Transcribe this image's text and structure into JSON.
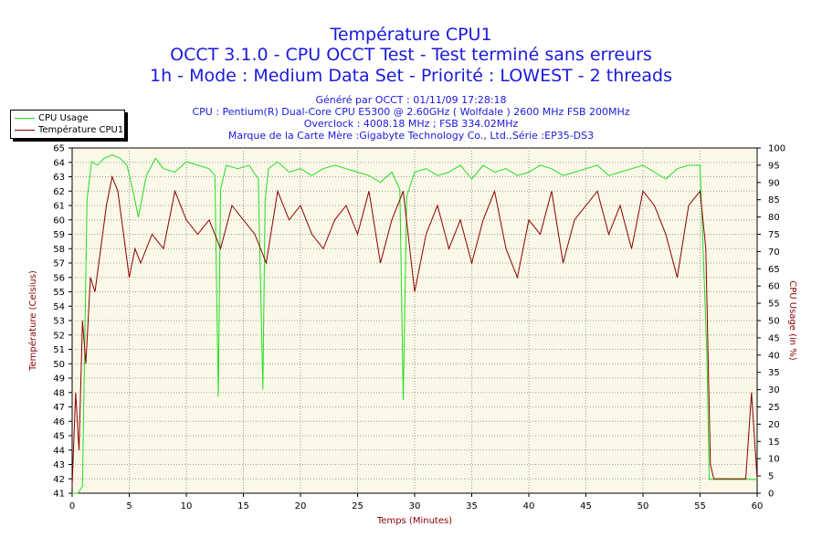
{
  "header": {
    "title": "Température CPU1",
    "subtitle1": "OCCT 3.1.0 - CPU OCCT Test - Test terminé sans erreurs",
    "subtitle2": "1h - Mode : Medium Data Set - Priorité : LOWEST - 2 threads",
    "info": [
      "Généré par OCCT : 01/11/09 17:28:18",
      "CPU : Pentium(R) Dual-Core CPU E5300 @ 2.60GHz ( Wolfdale ) 2600 MHz FSB 200MHz",
      "Overclock : 4008.18 MHz ; FSB 334.02MHz",
      "Marque de la Carte Mère :Gigabyte Technology Co., Ltd.,Série :EP35-DS3"
    ]
  },
  "legend": {
    "cpu_usage": "CPU Usage",
    "temperature": "Température CPU1"
  },
  "colors": {
    "cpu_usage": "#22dd22",
    "temperature": "#8b0000",
    "plot_bg": "#fbf8e8",
    "grid": "#9a9a9a",
    "title": "#1a1adb",
    "axis_label": "#8b0000"
  },
  "chart_data": {
    "type": "line",
    "xlabel": "Temps (Minutes)",
    "ylabel_left": "Température (Celsius)",
    "ylabel_right": "CPU Usage (in %)",
    "xlim": [
      0,
      60
    ],
    "ylim_left": [
      41,
      65
    ],
    "ylim_right": [
      0,
      100
    ],
    "x_ticks": [
      0,
      5,
      10,
      15,
      20,
      25,
      30,
      35,
      40,
      45,
      50,
      55,
      60
    ],
    "left_ticks": [
      41,
      42,
      43,
      44,
      45,
      46,
      47,
      48,
      49,
      50,
      51,
      52,
      53,
      54,
      55,
      56,
      57,
      58,
      59,
      60,
      61,
      62,
      63,
      64,
      65
    ],
    "right_ticks": [
      0,
      5,
      10,
      15,
      20,
      25,
      30,
      35,
      40,
      45,
      50,
      55,
      60,
      65,
      70,
      75,
      80,
      85,
      90,
      95,
      100
    ],
    "grid": true,
    "legend_position": "top-left",
    "series": [
      {
        "name": "CPU Usage",
        "axis": "right",
        "x": [
          0,
          0.5,
          0.9,
          1.3,
          1.7,
          2.2,
          2.8,
          3.5,
          4.2,
          4.8,
          5.3,
          5.8,
          6.5,
          7.3,
          8.0,
          9.0,
          10.0,
          11.0,
          12.0,
          12.5,
          12.8,
          13.0,
          13.5,
          14.5,
          15.5,
          16.3,
          16.7,
          16.9,
          17.2,
          18.0,
          19.0,
          20.0,
          21.0,
          22.0,
          23.0,
          24.0,
          25.0,
          26.0,
          27.0,
          28.0,
          28.7,
          29.0,
          29.3,
          30.0,
          31.0,
          32.0,
          33.0,
          34.0,
          35.0,
          36.0,
          37.0,
          38.0,
          39.0,
          40.0,
          41.0,
          42.0,
          43.0,
          44.0,
          45.0,
          46.0,
          47.0,
          48.0,
          49.0,
          50.0,
          51.0,
          52.0,
          53.0,
          54.0,
          55.0,
          55.6,
          55.8,
          56.0,
          57.0,
          58.0,
          59.0,
          60.0
        ],
        "y": [
          0,
          0,
          2,
          85,
          96,
          95,
          97,
          98,
          97,
          95,
          88,
          80,
          92,
          97,
          94,
          93,
          96,
          95,
          94,
          92,
          28,
          88,
          95,
          94,
          95,
          91,
          30,
          85,
          94,
          96,
          93,
          94,
          92,
          94,
          95,
          94,
          93,
          92,
          90,
          93,
          88,
          27,
          86,
          93,
          94,
          92,
          93,
          95,
          91,
          95,
          93,
          94,
          92,
          93,
          95,
          94,
          92,
          93,
          94,
          95,
          92,
          93,
          94,
          95,
          93,
          91,
          94,
          95,
          95,
          40,
          4,
          4,
          4,
          4,
          4,
          4
        ]
      },
      {
        "name": "Température CPU1",
        "axis": "left",
        "x": [
          0,
          0.3,
          0.6,
          0.9,
          1.2,
          1.6,
          2.0,
          2.5,
          3.0,
          3.5,
          4.0,
          4.5,
          5.0,
          5.5,
          6.0,
          7.0,
          8.0,
          9.0,
          10.0,
          11.0,
          12.0,
          13.0,
          14.0,
          15.0,
          16.0,
          17.0,
          18.0,
          19.0,
          20.0,
          21.0,
          22.0,
          23.0,
          24.0,
          25.0,
          26.0,
          27.0,
          28.0,
          29.0,
          30.0,
          31.0,
          32.0,
          33.0,
          34.0,
          35.0,
          36.0,
          37.0,
          38.0,
          39.0,
          40.0,
          41.0,
          42.0,
          43.0,
          44.0,
          45.0,
          46.0,
          47.0,
          48.0,
          49.0,
          50.0,
          51.0,
          52.0,
          53.0,
          54.0,
          55.0,
          55.5,
          55.9,
          56.2,
          57.0,
          58.0,
          59.0,
          59.5,
          60.0
        ],
        "y": [
          41.5,
          48,
          44,
          53,
          50,
          56,
          55,
          58,
          61,
          63,
          62,
          59,
          56,
          58,
          57,
          59,
          58,
          62,
          60,
          59,
          60,
          58,
          61,
          60,
          59,
          57,
          62,
          60,
          61,
          59,
          58,
          60,
          61,
          59,
          62,
          57,
          60,
          62,
          55,
          59,
          61,
          58,
          60,
          57,
          60,
          62,
          58,
          56,
          60,
          59,
          62,
          57,
          60,
          61,
          62,
          59,
          61,
          58,
          62,
          61,
          59,
          56,
          61,
          62,
          58,
          43,
          42,
          42,
          42,
          42,
          48,
          42
        ]
      }
    ]
  }
}
